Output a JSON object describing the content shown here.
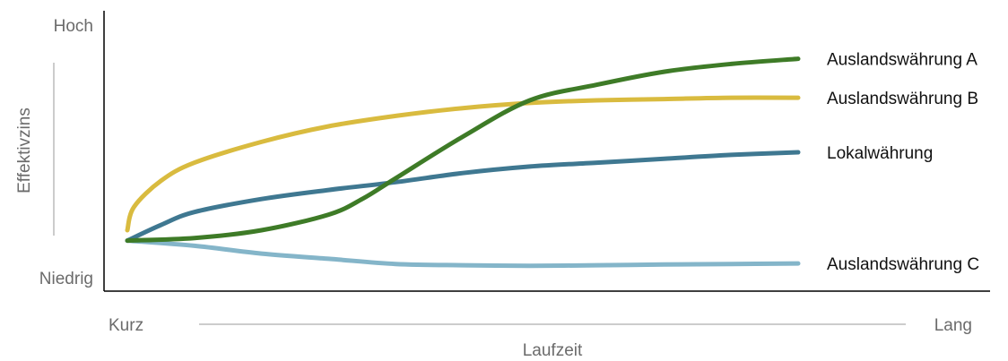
{
  "chart_data": {
    "type": "line",
    "title": "",
    "xlabel": "Laufzeit",
    "ylabel": "Effektivzins",
    "x_tick_labels": {
      "low": "Kurz",
      "high": "Lang"
    },
    "y_tick_labels": {
      "low": "Niedrig",
      "high": "Hoch"
    },
    "xlim": [
      0,
      1
    ],
    "ylim": [
      0,
      1
    ],
    "grid": false,
    "legend": "direct labels at right end of lines",
    "series": [
      {
        "name": "Auslandswährung A",
        "color": "#3e7b27",
        "x": [
          0,
          0.1,
          0.2,
          0.3,
          0.35,
          0.4,
          0.5,
          0.6,
          0.7,
          0.8,
          0.9,
          1.0
        ],
        "y": [
          0.16,
          0.17,
          0.2,
          0.26,
          0.32,
          0.4,
          0.56,
          0.7,
          0.76,
          0.81,
          0.84,
          0.86
        ]
      },
      {
        "name": "Auslandswährung B",
        "color": "#d9bb3f",
        "x": [
          0,
          0.01,
          0.05,
          0.1,
          0.2,
          0.3,
          0.4,
          0.5,
          0.6,
          0.7,
          0.8,
          0.9,
          1.0
        ],
        "y": [
          0.2,
          0.29,
          0.39,
          0.46,
          0.54,
          0.6,
          0.64,
          0.67,
          0.69,
          0.7,
          0.705,
          0.71,
          0.71
        ]
      },
      {
        "name": "Lokalwährung",
        "color": "#3f7891",
        "x": [
          0,
          0.05,
          0.1,
          0.2,
          0.3,
          0.4,
          0.5,
          0.6,
          0.7,
          0.8,
          0.9,
          1.0
        ],
        "y": [
          0.16,
          0.22,
          0.27,
          0.32,
          0.355,
          0.385,
          0.42,
          0.445,
          0.46,
          0.475,
          0.49,
          0.5
        ]
      },
      {
        "name": "Auslandswährung C",
        "color": "#84b5c9",
        "x": [
          0,
          0.1,
          0.2,
          0.3,
          0.4,
          0.5,
          0.6,
          0.7,
          0.8,
          0.9,
          1.0
        ],
        "y": [
          0.16,
          0.14,
          0.11,
          0.09,
          0.07,
          0.065,
          0.063,
          0.065,
          0.068,
          0.07,
          0.072
        ]
      }
    ]
  }
}
